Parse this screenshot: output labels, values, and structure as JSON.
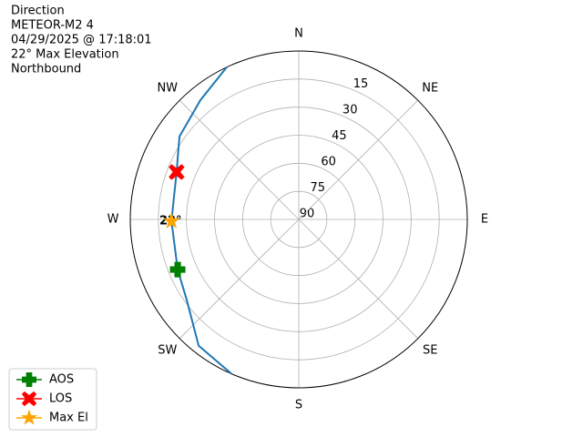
{
  "chart_data": {
    "type": "polar",
    "title_lines": [
      "Direction",
      "METEOR-M2 4",
      "04/29/2025 @ 17:18:01",
      "22° Max Elevation",
      "Northbound"
    ],
    "xticks": [
      {
        "value": 0,
        "label": "N"
      },
      {
        "value": 45,
        "label": "NE"
      },
      {
        "value": 90,
        "label": "E"
      },
      {
        "value": 135,
        "label": "SE"
      },
      {
        "value": 180,
        "label": "S"
      },
      {
        "value": 225,
        "label": "SW"
      },
      {
        "value": 270,
        "label": "W"
      },
      {
        "value": 315,
        "label": "NW"
      }
    ],
    "rlim": [
      90,
      0
    ],
    "rticks": [
      15,
      30,
      45,
      60,
      75,
      90
    ],
    "grid": true,
    "series": [
      {
        "color": "#1f77b4",
        "x": [
          203.5,
          218.4,
          234.1,
          247.5,
          269.2,
          291.2,
          304.8,
          320.5,
          334.7
        ],
        "values": [
          0,
          3.9,
          16.2,
          20,
          22,
          20,
          12.4,
          7.4,
          0
        ]
      }
    ],
    "markers": [
      {
        "name": "AOS",
        "color": "green",
        "marker": "plus",
        "x": 247.5,
        "value": 20
      },
      {
        "name": "LOS",
        "color": "red",
        "marker": "x",
        "x": 291.2,
        "value": 20
      },
      {
        "name": "Max El",
        "color": "orange",
        "marker": "star",
        "x": 269.2,
        "value": 22
      }
    ],
    "annotation": {
      "text": "22°",
      "x": 269.2,
      "value": 22
    },
    "legend": "lower left"
  }
}
